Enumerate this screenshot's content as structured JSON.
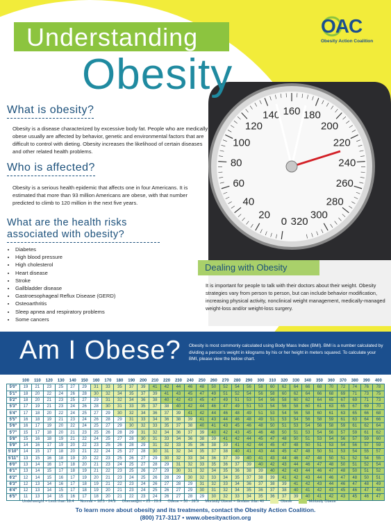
{
  "header": {
    "title_line1": "Understanding",
    "title_line2": "Obesity",
    "logo": "OAC",
    "logo_subtitle": "Obesity Action Coalition"
  },
  "sections": [
    {
      "heading": "What is obesity?",
      "body": "Obesity is a disease characterized by excessive body fat. People who are medically obese usually are affected by behavior, genetic and environmental factors that are difficult to control with dieting. Obesity increases the likelihood of certain diseases and other related health problems."
    },
    {
      "heading": "Who is affected?",
      "body": "Obesity is a serious health epidemic that affects one in four Americans. It is estimated that more than 93 million Americans are obese, with that number predicted to climb to 120 million in the next five years."
    },
    {
      "heading": "What are the health risks associated with obesity?",
      "items": [
        "Diabetes",
        "High blood pressure",
        "High cholesterol",
        "Heart disease",
        "Stroke",
        "Gallbladder disease",
        "Gastroesophageal Reflux Disease (GERD)",
        "Osteoarthritis",
        "Sleep apnea and respiratory problems",
        "Some cancers"
      ]
    }
  ],
  "dealing": {
    "heading": "Dealing with Obesity",
    "body": "It is important for people to talk with their doctors about their weight. Obesity strategies vary from person to person, but can include behavior modification, increasing physical activity, nonclinical weight management, medically-managed weight-loss and/or weight-loss surgery."
  },
  "scale_dial": [
    0,
    20,
    40,
    60,
    80,
    100,
    120,
    140,
    160,
    180,
    200,
    220,
    240,
    260,
    280,
    300,
    320
  ],
  "am_i_obese": {
    "heading": "Am I Obese?",
    "body": "Obesity is most commonly calculated using Body Mass Index (BMI). BMI is a number calculated by dividing a person's weight in kilograms by his or her height in meters squared. To calculate your BMI, please view the below chart."
  },
  "bmi_table": {
    "weights": [
      100,
      110,
      120,
      130,
      140,
      150,
      160,
      170,
      180,
      190,
      200,
      210,
      220,
      230,
      240,
      250,
      260,
      270,
      280,
      290,
      300,
      310,
      320,
      330,
      340,
      350,
      360,
      370,
      380,
      390,
      400
    ],
    "heights": [
      "5'0\"",
      "5'1\"",
      "5'2\"",
      "5'3\"",
      "5'4\"",
      "5'5\"",
      "5'6\"",
      "5'7\"",
      "5'8\"",
      "5'9\"",
      "5'10\"",
      "5'11\"",
      "6'0\"",
      "6'1\"",
      "6'2\"",
      "6'3\"",
      "6'4\"",
      "6'5\""
    ],
    "rows": [
      [
        19,
        21,
        23,
        25,
        27,
        29,
        31,
        33,
        35,
        37,
        39,
        41,
        42,
        44,
        46,
        48,
        50,
        52,
        54,
        56,
        58,
        60,
        62,
        64,
        66,
        68,
        70,
        72,
        74,
        76,
        78
      ],
      [
        18,
        20,
        22,
        24,
        26,
        28,
        30,
        32,
        34,
        35,
        37,
        39,
        41,
        43,
        45,
        47,
        49,
        51,
        52,
        54,
        56,
        58,
        60,
        62,
        64,
        66,
        68,
        69,
        71,
        73,
        75
      ],
      [
        18,
        20,
        21,
        23,
        25,
        27,
        29,
        31,
        32,
        34,
        36,
        38,
        40,
        42,
        43,
        45,
        47,
        49,
        51,
        53,
        54,
        56,
        58,
        60,
        62,
        64,
        65,
        67,
        69,
        71,
        73
      ],
      [
        17,
        19,
        21,
        23,
        24,
        26,
        28,
        30,
        31,
        33,
        35,
        37,
        38,
        40,
        42,
        44,
        46,
        47,
        49,
        51,
        53,
        54,
        56,
        58,
        60,
        61,
        63,
        65,
        67,
        69,
        70
      ],
      [
        17,
        18,
        20,
        22,
        24,
        25,
        27,
        29,
        30,
        32,
        34,
        36,
        37,
        39,
        41,
        42,
        44,
        46,
        48,
        49,
        51,
        53,
        54,
        56,
        58,
        60,
        61,
        63,
        65,
        66,
        68
      ],
      [
        16,
        18,
        19,
        21,
        23,
        24,
        26,
        28,
        29,
        31,
        33,
        34,
        36,
        38,
        39,
        41,
        43,
        44,
        46,
        48,
        49,
        51,
        53,
        54,
        56,
        58,
        59,
        61,
        63,
        64,
        66
      ],
      [
        16,
        17,
        19,
        20,
        22,
        24,
        25,
        27,
        29,
        30,
        32,
        33,
        35,
        37,
        38,
        40,
        41,
        43,
        45,
        46,
        48,
        50,
        51,
        53,
        54,
        56,
        58,
        59,
        61,
        62,
        64
      ],
      [
        15,
        17,
        18,
        20,
        21,
        23,
        25,
        26,
        28,
        29,
        31,
        32,
        34,
        36,
        37,
        39,
        40,
        42,
        43,
        45,
        46,
        48,
        50,
        51,
        53,
        54,
        56,
        57,
        59,
        61,
        62
      ],
      [
        15,
        16,
        18,
        19,
        21,
        22,
        24,
        25,
        27,
        28,
        30,
        31,
        33,
        34,
        36,
        38,
        39,
        41,
        42,
        44,
        45,
        47,
        48,
        50,
        51,
        53,
        54,
        56,
        57,
        59,
        60
      ],
      [
        14,
        16,
        17,
        19,
        20,
        22,
        23,
        25,
        26,
        28,
        29,
        31,
        32,
        33,
        35,
        36,
        38,
        39,
        41,
        42,
        44,
        45,
        47,
        48,
        50,
        51,
        53,
        54,
        56,
        57,
        59
      ],
      [
        14,
        15,
        17,
        18,
        20,
        21,
        22,
        24,
        25,
        27,
        28,
        30,
        31,
        32,
        34,
        35,
        37,
        38,
        40,
        41,
        43,
        44,
        45,
        47,
        48,
        50,
        51,
        53,
        54,
        55,
        57
      ],
      [
        13,
        15,
        16,
        18,
        19,
        20,
        22,
        23,
        25,
        26,
        27,
        29,
        30,
        32,
        33,
        34,
        36,
        37,
        39,
        40,
        41,
        43,
        44,
        46,
        47,
        48,
        50,
        51,
        52,
        54,
        55
      ],
      [
        13,
        14,
        16,
        17,
        18,
        20,
        21,
        23,
        24,
        25,
        27,
        28,
        29,
        31,
        32,
        33,
        35,
        36,
        37,
        39,
        40,
        42,
        43,
        44,
        46,
        47,
        48,
        50,
        51,
        52,
        54
      ],
      [
        13,
        14,
        15,
        17,
        18,
        19,
        21,
        22,
        23,
        25,
        26,
        27,
        29,
        30,
        31,
        32,
        34,
        35,
        36,
        38,
        39,
        40,
        42,
        43,
        44,
        46,
        47,
        48,
        50,
        51,
        52
      ],
      [
        12,
        14,
        15,
        16,
        17,
        19,
        20,
        21,
        23,
        24,
        25,
        26,
        28,
        29,
        30,
        32,
        33,
        34,
        35,
        37,
        38,
        39,
        41,
        42,
        43,
        44,
        46,
        47,
        48,
        50,
        51
      ],
      [
        12,
        13,
        14,
        16,
        17,
        18,
        19,
        21,
        22,
        23,
        24,
        26,
        27,
        28,
        29,
        31,
        32,
        33,
        34,
        36,
        37,
        38,
        39,
        41,
        42,
        43,
        44,
        46,
        47,
        48,
        49
      ],
      [
        12,
        13,
        14,
        15,
        17,
        18,
        19,
        20,
        21,
        23,
        24,
        25,
        26,
        27,
        29,
        30,
        31,
        32,
        34,
        35,
        36,
        37,
        38,
        40,
        41,
        42,
        43,
        45,
        46,
        47,
        48
      ],
      [
        11,
        13,
        14,
        15,
        16,
        17,
        18,
        20,
        21,
        22,
        23,
        24,
        26,
        27,
        28,
        29,
        30,
        32,
        33,
        34,
        35,
        36,
        37,
        39,
        40,
        41,
        42,
        43,
        45,
        46,
        47
      ]
    ],
    "bands": [
      {
        "min": 30,
        "color": "#e6efa6"
      },
      {
        "min": 40,
        "color": "#b4d46a"
      }
    ]
  },
  "key": {
    "items": [
      "Underweight = Less than 18.4",
      "Normal = 18.5 - 24.9",
      "Overweight = 25 - 29.9",
      "Obese = 30 - 39.9",
      "Morbidly Obese = Greater than 40"
    ],
    "swatches": [
      {
        "name": "Obese",
        "color": "#e6efa6"
      },
      {
        "name": "Morbidly Obese",
        "color": "#b4d46a"
      }
    ]
  },
  "footer": {
    "line1": "To learn more about obesity and its treatments, contact the Obesity Action Coalition.",
    "line2": "(800) 717-3117 • www.obesityaction.org"
  }
}
